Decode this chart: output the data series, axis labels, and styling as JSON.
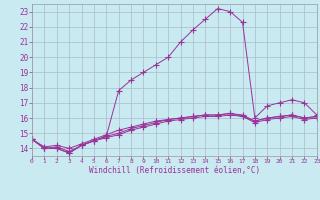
{
  "xlabel": "Windchill (Refroidissement éolien,°C)",
  "bg_color": "#c8eaf0",
  "line_color": "#993399",
  "grid_color": "#aabbcc",
  "xlim": [
    0,
    23
  ],
  "ylim": [
    13.5,
    23.5
  ],
  "yticks": [
    14,
    15,
    16,
    17,
    18,
    19,
    20,
    21,
    22,
    23
  ],
  "xticks": [
    0,
    1,
    2,
    3,
    4,
    5,
    6,
    7,
    8,
    9,
    10,
    11,
    12,
    13,
    14,
    15,
    16,
    17,
    18,
    19,
    20,
    21,
    22,
    23
  ],
  "series": [
    [
      14.6,
      14.0,
      14.0,
      13.7,
      14.2,
      14.5,
      14.8,
      17.8,
      18.5,
      19.0,
      19.5,
      20.0,
      21.0,
      21.8,
      22.5,
      23.2,
      23.0,
      22.3,
      16.0,
      16.8,
      17.0,
      17.2,
      17.0,
      16.2
    ],
    [
      14.6,
      14.0,
      14.0,
      13.7,
      14.2,
      14.5,
      14.8,
      15.0,
      15.3,
      15.5,
      15.7,
      15.9,
      16.0,
      16.1,
      16.2,
      16.2,
      16.3,
      16.2,
      15.8,
      16.0,
      16.1,
      16.2,
      16.0,
      16.1
    ],
    [
      14.6,
      14.0,
      14.1,
      13.8,
      14.2,
      14.5,
      14.7,
      14.9,
      15.2,
      15.4,
      15.6,
      15.8,
      15.9,
      16.0,
      16.1,
      16.1,
      16.2,
      16.1,
      15.7,
      15.9,
      16.0,
      16.1,
      15.9,
      16.0
    ],
    [
      14.6,
      14.1,
      14.2,
      14.0,
      14.3,
      14.6,
      14.9,
      15.2,
      15.4,
      15.6,
      15.8,
      15.9,
      16.0,
      16.1,
      16.2,
      16.2,
      16.3,
      16.1,
      15.8,
      16.0,
      16.1,
      16.2,
      16.0,
      16.1
    ]
  ]
}
